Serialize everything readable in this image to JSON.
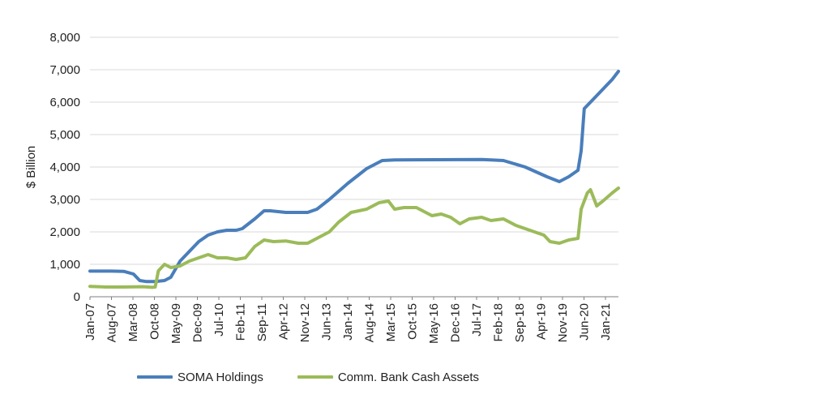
{
  "chart_data": {
    "type": "line",
    "ylabel": "$ Billion",
    "xlabel": "",
    "ylim": [
      0,
      8000
    ],
    "y_ticks": [
      0,
      1000,
      2000,
      3000,
      4000,
      5000,
      6000,
      7000,
      8000
    ],
    "y_tick_labels": [
      "0",
      "1,000",
      "2,000",
      "3,000",
      "4,000",
      "5,000",
      "6,000",
      "7,000",
      "8,000"
    ],
    "x_range": [
      "2007-01",
      "2021-03"
    ],
    "x_tick_labels": [
      "Jan-07",
      "Aug-07",
      "Mar-08",
      "Oct-08",
      "May-09",
      "Dec-09",
      "Jul-10",
      "Feb-11",
      "Sep-11",
      "Apr-12",
      "Nov-12",
      "Jun-13",
      "Jan-14",
      "Aug-14",
      "Mar-15",
      "Oct-15",
      "May-16",
      "Dec-16",
      "Jul-17",
      "Feb-18",
      "Sep-18",
      "Apr-19",
      "Nov-19",
      "Jun-20",
      "Jan-21"
    ],
    "grid": true,
    "legend_position": "bottom",
    "series": [
      {
        "name": "SOMA Holdings",
        "color": "#4a7ebb",
        "points": [
          [
            "2007-01",
            790
          ],
          [
            "2007-08",
            790
          ],
          [
            "2007-12",
            780
          ],
          [
            "2008-03",
            700
          ],
          [
            "2008-05",
            500
          ],
          [
            "2008-07",
            470
          ],
          [
            "2008-10",
            470
          ],
          [
            "2009-01",
            500
          ],
          [
            "2009-03",
            600
          ],
          [
            "2009-06",
            1100
          ],
          [
            "2009-09",
            1400
          ],
          [
            "2009-12",
            1700
          ],
          [
            "2010-03",
            1900
          ],
          [
            "2010-06",
            2000
          ],
          [
            "2010-09",
            2050
          ],
          [
            "2010-12",
            2050
          ],
          [
            "2011-02",
            2100
          ],
          [
            "2011-06",
            2400
          ],
          [
            "2011-09",
            2650
          ],
          [
            "2011-11",
            2650
          ],
          [
            "2012-04",
            2600
          ],
          [
            "2012-11",
            2600
          ],
          [
            "2013-02",
            2700
          ],
          [
            "2013-06",
            3000
          ],
          [
            "2013-12",
            3500
          ],
          [
            "2014-06",
            3950
          ],
          [
            "2014-11",
            4200
          ],
          [
            "2015-03",
            4220
          ],
          [
            "2017-07",
            4230
          ],
          [
            "2017-10",
            4220
          ],
          [
            "2018-02",
            4200
          ],
          [
            "2018-09",
            4000
          ],
          [
            "2019-04",
            3700
          ],
          [
            "2019-08",
            3550
          ],
          [
            "2019-11",
            3700
          ],
          [
            "2020-02",
            3900
          ],
          [
            "2020-03",
            4500
          ],
          [
            "2020-04",
            5800
          ],
          [
            "2020-06",
            6000
          ],
          [
            "2020-09",
            6300
          ],
          [
            "2021-01",
            6700
          ],
          [
            "2021-03",
            6950
          ]
        ]
      },
      {
        "name": "Comm. Bank Cash Assets",
        "color": "#9bbb59",
        "points": [
          [
            "2007-01",
            320
          ],
          [
            "2007-06",
            300
          ],
          [
            "2007-12",
            300
          ],
          [
            "2008-06",
            310
          ],
          [
            "2008-09",
            290
          ],
          [
            "2008-10",
            300
          ],
          [
            "2008-11",
            800
          ],
          [
            "2009-01",
            1000
          ],
          [
            "2009-03",
            900
          ],
          [
            "2009-06",
            950
          ],
          [
            "2009-09",
            1100
          ],
          [
            "2009-12",
            1200
          ],
          [
            "2010-03",
            1300
          ],
          [
            "2010-06",
            1200
          ],
          [
            "2010-09",
            1200
          ],
          [
            "2010-12",
            1150
          ],
          [
            "2011-03",
            1200
          ],
          [
            "2011-06",
            1550
          ],
          [
            "2011-09",
            1750
          ],
          [
            "2011-12",
            1700
          ],
          [
            "2012-04",
            1720
          ],
          [
            "2012-08",
            1650
          ],
          [
            "2012-11",
            1650
          ],
          [
            "2013-03",
            1850
          ],
          [
            "2013-06",
            2000
          ],
          [
            "2013-09",
            2300
          ],
          [
            "2014-01",
            2600
          ],
          [
            "2014-06",
            2700
          ],
          [
            "2014-10",
            2900
          ],
          [
            "2015-01",
            2950
          ],
          [
            "2015-03",
            2700
          ],
          [
            "2015-06",
            2750
          ],
          [
            "2015-10",
            2750
          ],
          [
            "2016-03",
            2500
          ],
          [
            "2016-06",
            2550
          ],
          [
            "2016-09",
            2450
          ],
          [
            "2016-12",
            2250
          ],
          [
            "2017-03",
            2400
          ],
          [
            "2017-07",
            2450
          ],
          [
            "2017-10",
            2350
          ],
          [
            "2018-02",
            2400
          ],
          [
            "2018-06",
            2200
          ],
          [
            "2018-09",
            2100
          ],
          [
            "2018-12",
            2000
          ],
          [
            "2019-03",
            1900
          ],
          [
            "2019-05",
            1700
          ],
          [
            "2019-08",
            1650
          ],
          [
            "2019-11",
            1750
          ],
          [
            "2020-02",
            1800
          ],
          [
            "2020-03",
            2700
          ],
          [
            "2020-05",
            3200
          ],
          [
            "2020-06",
            3300
          ],
          [
            "2020-08",
            2800
          ],
          [
            "2020-10",
            2950
          ],
          [
            "2021-01",
            3200
          ],
          [
            "2021-03",
            3350
          ]
        ]
      }
    ]
  }
}
